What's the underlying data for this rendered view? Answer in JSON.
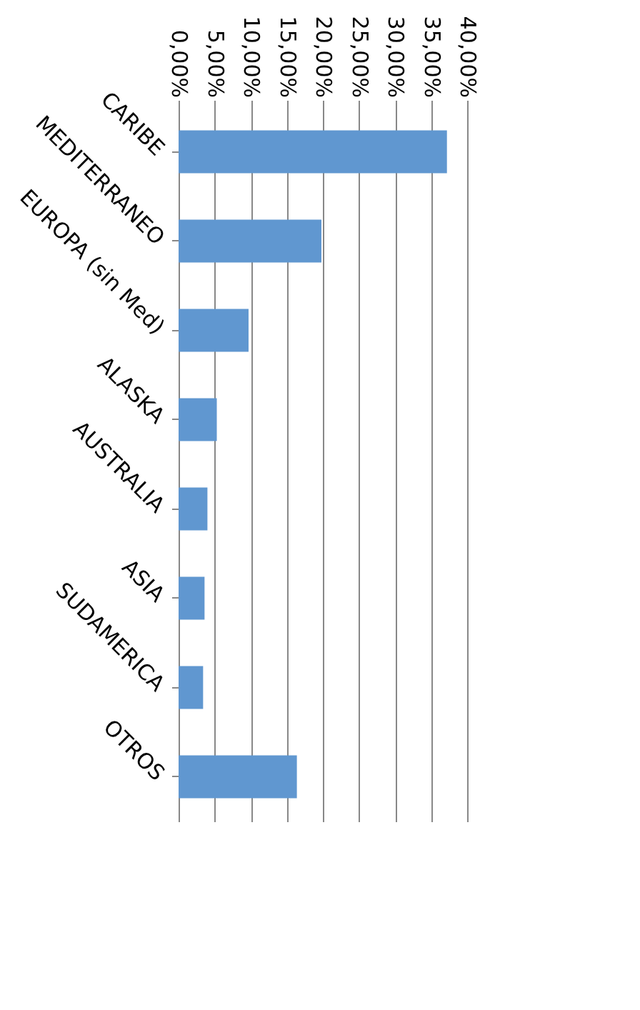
{
  "chart_data": {
    "type": "bar",
    "orientation": "horizontal",
    "categories": [
      "CARIBE",
      "MEDITERRANEO",
      "EUROPA (sin Med)",
      "ALASKA",
      "AUSTRALIA",
      "ASIA",
      "SUDAMERICA",
      "OTROS"
    ],
    "values": [
      37.2,
      19.8,
      9.7,
      5.3,
      4.0,
      3.6,
      3.4,
      16.4
    ],
    "color": "#6097d0",
    "xlim": [
      0,
      40
    ],
    "xticks": [
      {
        "value": 0,
        "label": "0,00%"
      },
      {
        "value": 5,
        "label": "5,00%"
      },
      {
        "value": 10,
        "label": "10,00%"
      },
      {
        "value": 15,
        "label": "15,00%"
      },
      {
        "value": 20,
        "label": "20,00%"
      },
      {
        "value": 25,
        "label": "25,00%"
      },
      {
        "value": 30,
        "label": "30,00%"
      },
      {
        "value": 35,
        "label": "35,00%"
      },
      {
        "value": 40,
        "label": "40,00%"
      }
    ],
    "grid": "x"
  }
}
